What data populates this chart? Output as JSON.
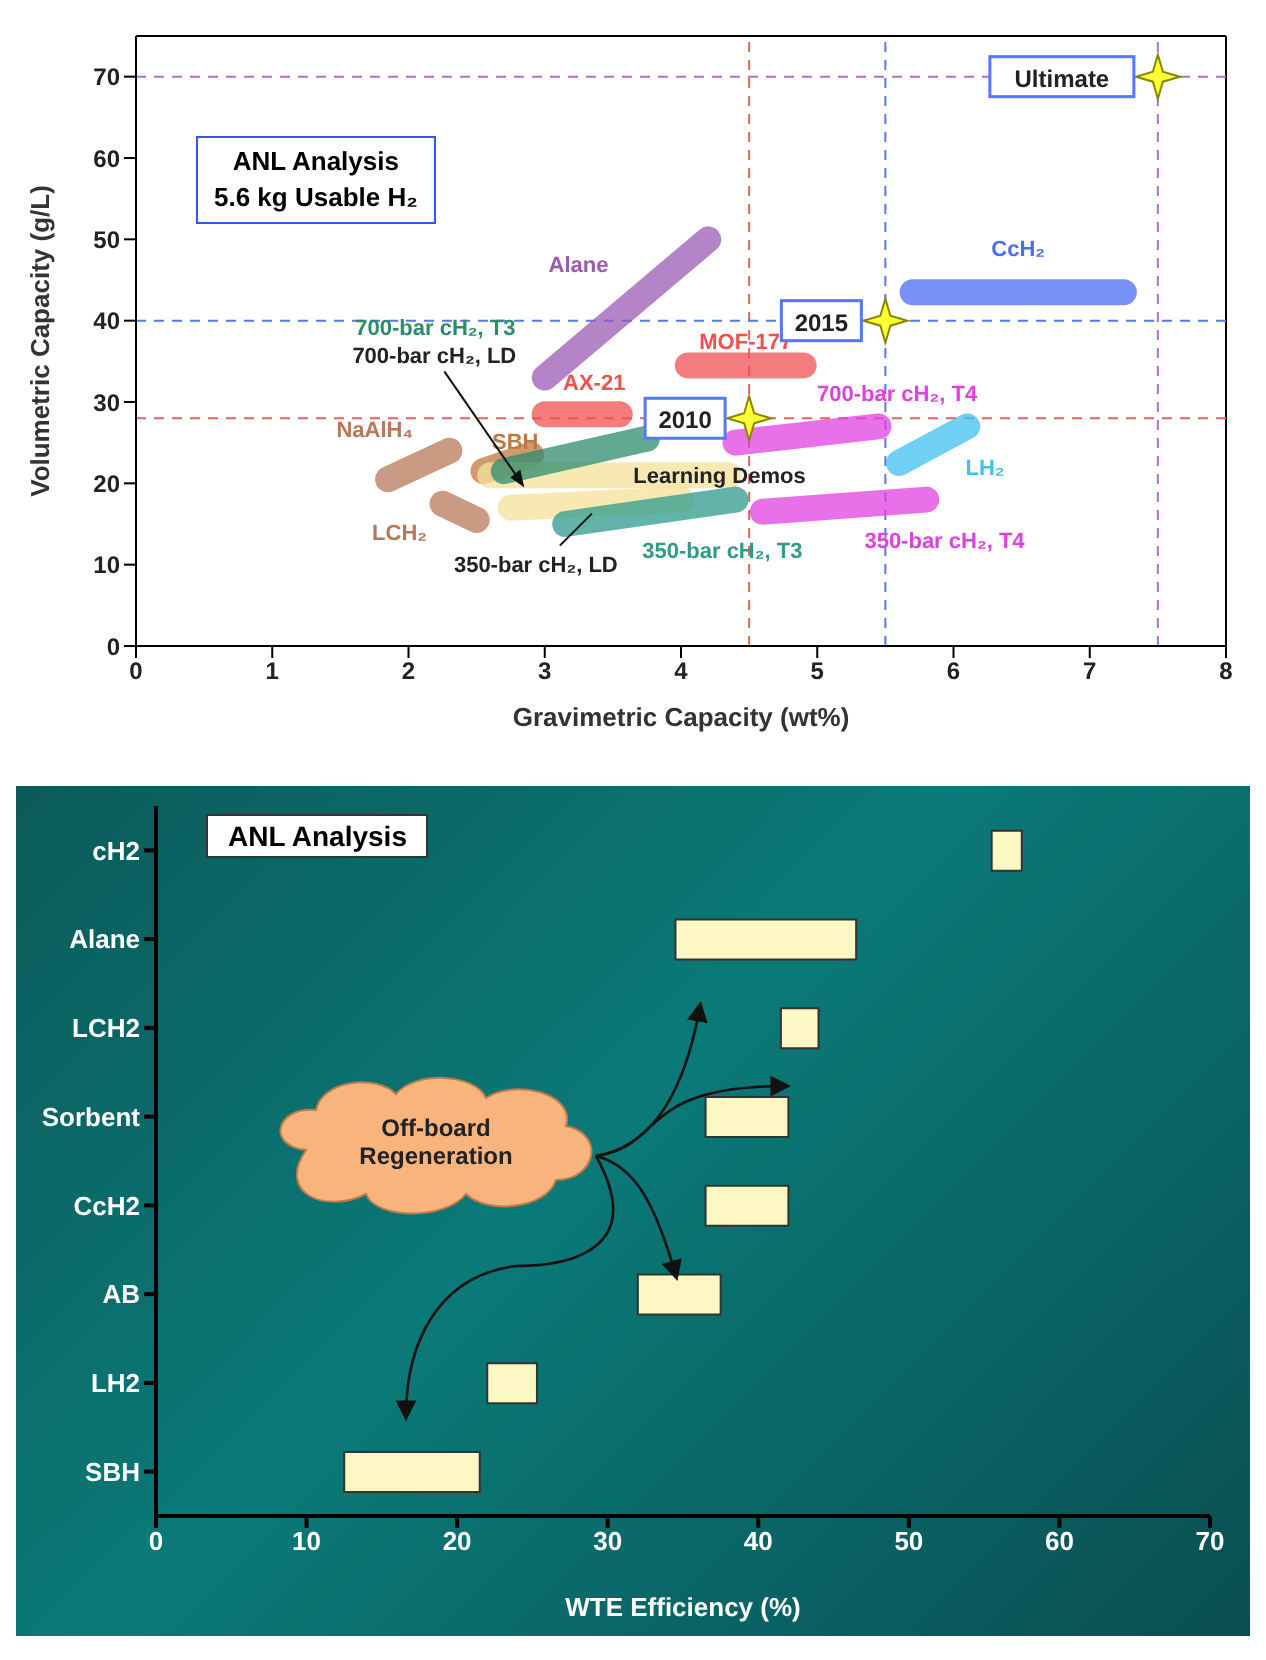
{
  "chart_data": [
    {
      "type": "line",
      "xlabel": "Gravimetric Capacity (wt%)",
      "ylabel": "Volumetric Capacity (g/L)",
      "xlim": [
        0,
        8
      ],
      "xticks": [
        0,
        1,
        2,
        3,
        4,
        5,
        6,
        7,
        8
      ],
      "ylim": [
        0,
        75
      ],
      "yticks": [
        0,
        10,
        20,
        30,
        40,
        50,
        60,
        70
      ],
      "marker": "none",
      "line_style": "solid",
      "series": [
        {
          "name": "Alane",
          "color": "#9b59b6",
          "x": [
            3.0,
            4.2
          ],
          "values": [
            33,
            50
          ]
        },
        {
          "name": "CcH₂",
          "color": "#4a6cf7",
          "x": [
            5.7,
            7.25
          ],
          "values": [
            43.5,
            43.5
          ]
        },
        {
          "name": "MOF-177",
          "color": "#f05050",
          "x": [
            4.05,
            4.9
          ],
          "values": [
            34.5,
            34.5
          ]
        },
        {
          "name": "AX-21",
          "color": "#f05050",
          "x": [
            3.0,
            3.55
          ],
          "values": [
            28.5,
            28.5
          ]
        },
        {
          "name": "NaAlH₄",
          "color": "#b87858",
          "x": [
            1.85,
            2.3
          ],
          "values": [
            20.5,
            24
          ]
        },
        {
          "name": "LCH₂",
          "color": "#b87858",
          "x": [
            2.25,
            2.5
          ],
          "values": [
            17.5,
            15.5
          ]
        },
        {
          "name": "SBH",
          "color": "#c07840",
          "x": [
            2.55,
            2.9
          ],
          "values": [
            21.5,
            23.5
          ]
        },
        {
          "name": "Learning Demos",
          "color": "#f5e29a",
          "x": [
            2.6,
            4.35
          ],
          "values": [
            21,
            21
          ]
        },
        {
          "name": "700-bar cH₂, T3",
          "color": "#2e8b6e",
          "x": [
            2.7,
            3.75
          ],
          "values": [
            21.5,
            25.5
          ]
        },
        {
          "name": "350-bar cH₂, LD",
          "color": "#f5e29a",
          "x": [
            2.75,
            4.0
          ],
          "values": [
            17,
            18
          ]
        },
        {
          "name": "350-bar cH₂, T3",
          "color": "#2e9b8e",
          "x": [
            3.15,
            4.4
          ],
          "values": [
            15,
            18
          ]
        },
        {
          "name": "700-bar cH₂, T4",
          "color": "#e040e0",
          "x": [
            4.4,
            5.45
          ],
          "values": [
            25,
            27
          ]
        },
        {
          "name": "350-bar cH₂, T4",
          "color": "#e040e0",
          "x": [
            4.6,
            5.8
          ],
          "values": [
            16.5,
            18
          ]
        },
        {
          "name": "LH₂",
          "color": "#40c0f0",
          "x": [
            5.6,
            6.1
          ],
          "values": [
            22.5,
            27
          ]
        },
        {
          "type": "scatter",
          "color": "#ffff33",
          "marker": "star",
          "x": [
            4.5,
            5.5,
            7.5
          ],
          "values": [
            28,
            40,
            70
          ]
        }
      ],
      "ref_lines": [
        {
          "axis": "x",
          "value": 4.5,
          "color": "#f06060",
          "line_style": "dashed"
        },
        {
          "axis": "y",
          "value": 28,
          "color": "#f06060",
          "line_style": "dashed"
        },
        {
          "axis": "x",
          "value": 5.5,
          "color": "#5577ff",
          "line_style": "dashed"
        },
        {
          "axis": "y",
          "value": 40,
          "color": "#5577ff",
          "line_style": "dashed"
        },
        {
          "axis": "x",
          "value": 7.5,
          "color": "#b070d0",
          "line_style": "dashed"
        },
        {
          "axis": "y",
          "value": 70,
          "color": "#b070d0",
          "line_style": "dashed"
        }
      ],
      "annotations": [
        "ANL Analysis",
        "5.6 kg Usable H₂",
        {
          "text": "2010",
          "x": 4.5,
          "y": 28
        },
        {
          "text": "2015",
          "x": 5.5,
          "y": 40
        },
        {
          "text": "Ultimate",
          "x": 7.5,
          "y": 70
        },
        {
          "text": "700-bar cH₂, LD",
          "x": 2.85,
          "y": 19.5
        }
      ]
    },
    {
      "type": "bar",
      "orientation": "horizontal",
      "categories": [
        "cH2",
        "Alane",
        "LCH2",
        "Sorbent",
        "CcH2",
        "AB",
        "LH2",
        "SBH"
      ],
      "base": [
        55.5,
        34.5,
        41.5,
        36.5,
        36.5,
        32,
        22,
        12.5
      ],
      "values": [
        2,
        12,
        2.5,
        5.5,
        5.5,
        5.5,
        3.3,
        9
      ],
      "color": "#fdf7c3",
      "xlim": [
        0,
        70
      ],
      "xticks": [
        0,
        10,
        20,
        30,
        40,
        50,
        60,
        70
      ],
      "xlabel": "WTE Efficiency (%)",
      "annotations": [
        "ANL Analysis",
        "Off-board Regeneration"
      ]
    }
  ]
}
